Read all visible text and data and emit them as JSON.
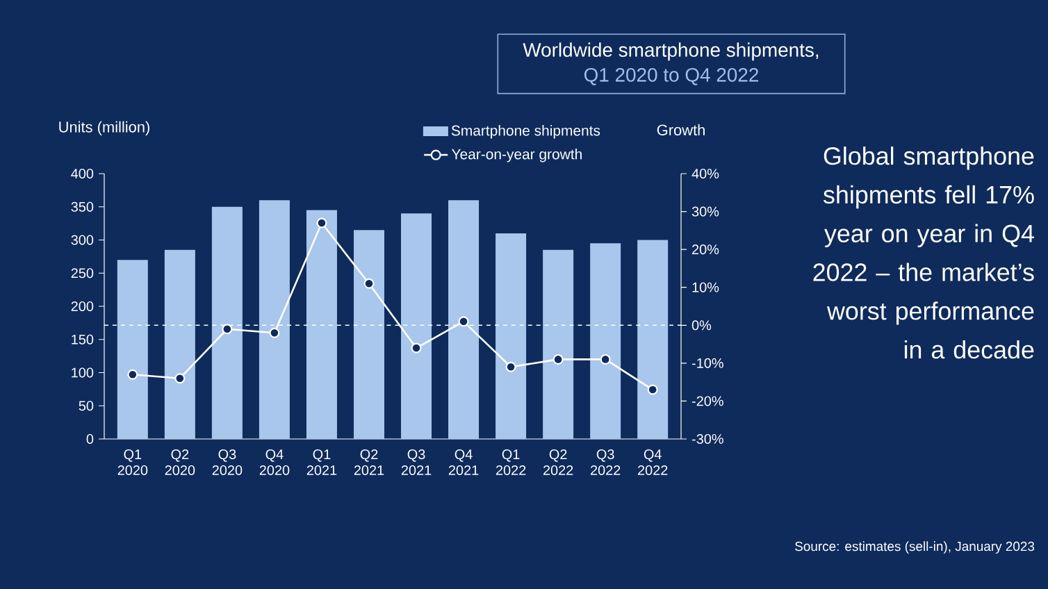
{
  "chart_data": {
    "type": "bar",
    "title": "Worldwide smartphone shipments,",
    "subtitle": "Q1 2020 to Q4 2022",
    "ylabel": "Units (million)",
    "y2label": "Growth",
    "categories": [
      "Q1 2020",
      "Q2 2020",
      "Q3 2020",
      "Q4 2020",
      "Q1 2021",
      "Q2 2021",
      "Q3 2021",
      "Q4 2021",
      "Q1 2022",
      "Q2 2022",
      "Q3 2022",
      "Q4 2022"
    ],
    "series": [
      {
        "name": "Smartphone shipments",
        "color": "#a9c6ec",
        "values": [
          270,
          285,
          350,
          360,
          345,
          315,
          340,
          360,
          310,
          285,
          295,
          300
        ]
      },
      {
        "name": "Year-on-year growth",
        "type": "line",
        "axis": "y2",
        "color": "#ffffff",
        "values": [
          -13,
          -14,
          -1,
          -2,
          27,
          11,
          -6,
          1,
          -11,
          -9,
          -9,
          -17
        ]
      }
    ],
    "ylim": [
      0,
      400
    ],
    "yticks": [
      0,
      50,
      100,
      150,
      200,
      250,
      300,
      350,
      400
    ],
    "y2lim": [
      -30,
      40
    ],
    "y2ticks": [
      {
        "value": -30,
        "label": "-30%"
      },
      {
        "value": -20,
        "label": "-20%"
      },
      {
        "value": -10,
        "label": "-10%"
      },
      {
        "value": 0,
        "label": "0%"
      },
      {
        "value": 10,
        "label": "10%"
      },
      {
        "value": 20,
        "label": "20%"
      },
      {
        "value": 30,
        "label": "30%"
      },
      {
        "value": 40,
        "label": "40%"
      }
    ],
    "ref_lines": [
      {
        "axis": "y2",
        "value": 0,
        "color": "#ffffff",
        "line_style": "dashed"
      }
    ],
    "legend": "top",
    "marker": "circle",
    "annotations": [
      "Global smartphone shipments fell 17% year on year in Q4 2022 – the market’s worst performance in a decade",
      "Source: estimates (sell-in), January 2023"
    ]
  }
}
